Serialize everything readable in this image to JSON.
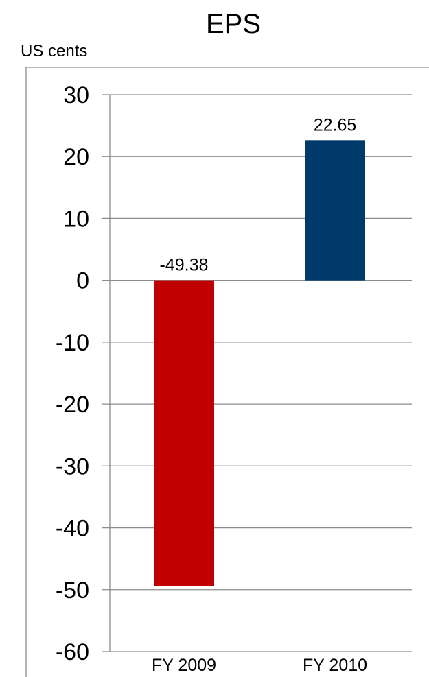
{
  "chart_data": {
    "type": "bar",
    "title": "EPS",
    "ylabel": "US cents",
    "xlabel": "",
    "categories": [
      "FY 2009",
      "FY 2010"
    ],
    "values": [
      -49.38,
      22.65
    ],
    "data_labels": [
      "-49.38",
      "22.65"
    ],
    "bar_colors": [
      "#c00000",
      "#003a6b"
    ],
    "ylim": [
      -60,
      30
    ],
    "yticks": [
      30,
      20,
      10,
      0,
      -10,
      -20,
      -30,
      -40,
      -50,
      -60
    ],
    "ytick_labels": [
      "30",
      "20",
      "10",
      "0",
      "-10",
      "-20",
      "-30",
      "-40",
      "-50",
      "-60"
    ],
    "grid": true,
    "legend": "none"
  }
}
